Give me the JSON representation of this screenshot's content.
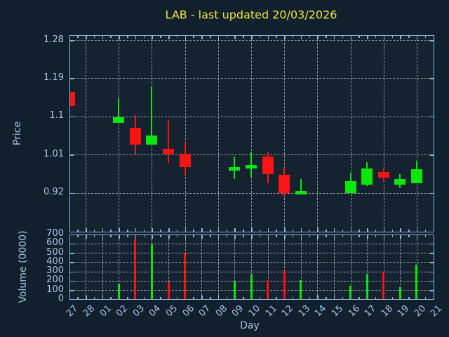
{
  "window": {
    "kind": "matplotlib-style price/volume chart"
  },
  "title": {
    "text": "LAB - last updated 20/03/2026"
  },
  "colors": {
    "figure_background": "#121f2c",
    "plot_background": "#15222f",
    "spine": "#8fb4dc",
    "grid": "#a9b2bc",
    "text": "#a8c4e6",
    "title": "#ece63e",
    "up": "#0ce60c",
    "down": "#f81414"
  },
  "chart_data": [
    {
      "type": "candlestick",
      "title": "LAB - last updated 20/03/2026",
      "xlabel": "Day",
      "ylabel": "Price",
      "x_categories": [
        "27",
        "28",
        "01",
        "02",
        "03",
        "04",
        "05",
        "06",
        "07",
        "08",
        "09",
        "10",
        "11",
        "12",
        "13",
        "14",
        "15",
        "16",
        "17",
        "18",
        "19",
        "20",
        "21"
      ],
      "yticks": [
        "1.28",
        "1.19",
        "1.1",
        "1.01",
        "0.92"
      ],
      "ylim": [
        0.828,
        1.29
      ],
      "grid": true,
      "note": "days 28,01,07,08,14,15,21 are non-trading (no candles); first candle (27) is clipped by the left axis edge",
      "candles": [
        {
          "xi": 0,
          "day": "27",
          "open": 1.157,
          "high": 1.157,
          "low": 1.124,
          "close": 1.124
        },
        {
          "xi": 3,
          "day": "02",
          "open": 1.085,
          "high": 1.142,
          "low": 1.085,
          "close": 1.098
        },
        {
          "xi": 4,
          "day": "03",
          "open": 1.074,
          "high": 1.103,
          "low": 1.011,
          "close": 1.033
        },
        {
          "xi": 5,
          "day": "04",
          "open": 1.033,
          "high": 1.169,
          "low": 1.033,
          "close": 1.056
        },
        {
          "xi": 6,
          "day": "05",
          "open": 1.023,
          "high": 1.091,
          "low": 0.99,
          "close": 1.013
        },
        {
          "xi": 7,
          "day": "06",
          "open": 1.013,
          "high": 1.038,
          "low": 0.963,
          "close": 0.981
        },
        {
          "xi": 10,
          "day": "09",
          "open": 0.973,
          "high": 1.005,
          "low": 0.952,
          "close": 0.981
        },
        {
          "xi": 11,
          "day": "10",
          "open": 0.978,
          "high": 1.018,
          "low": 0.958,
          "close": 0.985
        },
        {
          "xi": 12,
          "day": "11",
          "open": 1.005,
          "high": 1.015,
          "low": 0.943,
          "close": 0.964
        },
        {
          "xi": 13,
          "day": "12",
          "open": 0.963,
          "high": 0.979,
          "low": 0.91,
          "close": 0.92
        },
        {
          "xi": 14,
          "day": "13",
          "open": 0.916,
          "high": 0.953,
          "low": 0.916,
          "close": 0.925
        },
        {
          "xi": 17,
          "day": "16",
          "open": 0.92,
          "high": 0.968,
          "low": 0.92,
          "close": 0.948
        },
        {
          "xi": 18,
          "day": "17",
          "open": 0.94,
          "high": 0.993,
          "low": 0.937,
          "close": 0.978
        },
        {
          "xi": 19,
          "day": "18",
          "open": 0.969,
          "high": 0.979,
          "low": 0.946,
          "close": 0.956
        },
        {
          "xi": 20,
          "day": "19",
          "open": 0.939,
          "high": 0.964,
          "low": 0.932,
          "close": 0.952
        },
        {
          "xi": 21,
          "day": "20",
          "open": 0.943,
          "high": 0.996,
          "low": 0.943,
          "close": 0.976
        }
      ]
    },
    {
      "type": "bar",
      "ylabel": "Volume (0000)",
      "yticks": [
        "700",
        "600",
        "500",
        "400",
        "300",
        "200",
        "100",
        "0"
      ],
      "ylim": [
        0,
        700
      ],
      "grid": true,
      "bars": [
        {
          "xi": 3,
          "day": "02",
          "value": 170,
          "direction": "up"
        },
        {
          "xi": 4,
          "day": "03",
          "value": 640,
          "direction": "down"
        },
        {
          "xi": 5,
          "day": "04",
          "value": 595,
          "direction": "up"
        },
        {
          "xi": 6,
          "day": "05",
          "value": 195,
          "direction": "down"
        },
        {
          "xi": 7,
          "day": "06",
          "value": 490,
          "direction": "down"
        },
        {
          "xi": 10,
          "day": "09",
          "value": 190,
          "direction": "up"
        },
        {
          "xi": 11,
          "day": "10",
          "value": 265,
          "direction": "up"
        },
        {
          "xi": 12,
          "day": "11",
          "value": 205,
          "direction": "down"
        },
        {
          "xi": 13,
          "day": "12",
          "value": 315,
          "direction": "down"
        },
        {
          "xi": 14,
          "day": "13",
          "value": 210,
          "direction": "up"
        },
        {
          "xi": 17,
          "day": "16",
          "value": 150,
          "direction": "up"
        },
        {
          "xi": 18,
          "day": "17",
          "value": 265,
          "direction": "up"
        },
        {
          "xi": 19,
          "day": "18",
          "value": 300,
          "direction": "down"
        },
        {
          "xi": 20,
          "day": "19",
          "value": 135,
          "direction": "up"
        },
        {
          "xi": 21,
          "day": "20",
          "value": 375,
          "direction": "up"
        }
      ]
    }
  ]
}
